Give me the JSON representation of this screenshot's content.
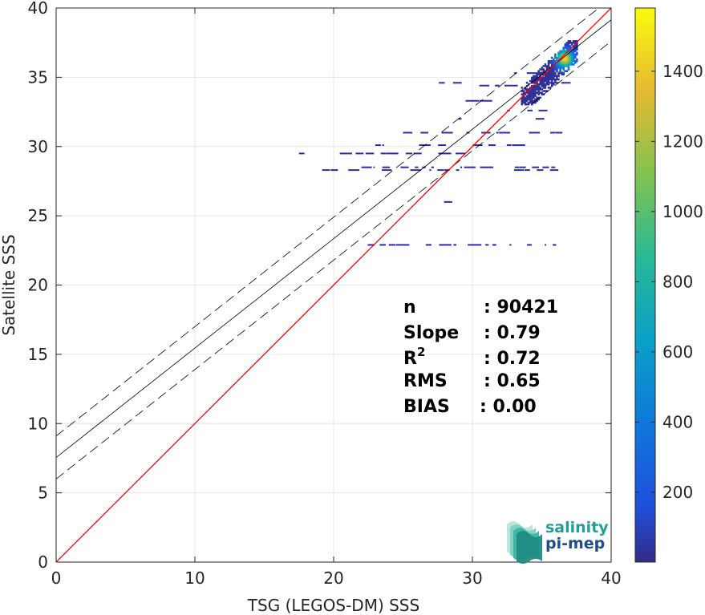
{
  "chart_data": {
    "type": "scatter",
    "subtype": "density-2d-histogram",
    "xlabel": "TSG (LEGOS-DM) SSS",
    "ylabel": "Satellite SSS",
    "xlim": [
      0,
      40
    ],
    "ylim": [
      0,
      40
    ],
    "xticks": [
      0,
      10,
      20,
      30,
      40
    ],
    "yticks": [
      0,
      5,
      10,
      15,
      20,
      25,
      30,
      35,
      40
    ],
    "grid": true,
    "colorbar": {
      "ticks": [
        200,
        400,
        600,
        800,
        1000,
        1200,
        1400
      ],
      "range": [
        1,
        1580
      ],
      "colormap": "parula"
    },
    "stats": [
      {
        "label": "n",
        "value": ": 90421"
      },
      {
        "label": "Slope",
        "value": ": 0.79"
      },
      {
        "label": "R",
        "sup": "2",
        "value": ": 0.72"
      },
      {
        "label": "RMS",
        "value": ": 0.65"
      },
      {
        "label": "BIAS",
        "value": ": 0.00"
      }
    ],
    "lines": {
      "identity": {
        "slope": 1.0,
        "intercept": 0.0,
        "color": "#ff0000"
      },
      "fit": {
        "slope": 0.79,
        "intercept": 7.55,
        "color": "#000000"
      },
      "fit_band_offset": 1.55
    },
    "density_core": {
      "x": [
        33.5,
        37.5
      ],
      "y": [
        33.0,
        37.6
      ],
      "peak": [
        36.6,
        36.3
      ]
    },
    "density_segments": [
      {
        "x0": 33.0,
        "x1": 37.2,
        "y": 35.3
      },
      {
        "x0": 34.0,
        "x1": 36.8,
        "y": 34.6
      },
      {
        "x0": 28.0,
        "x1": 31.5,
        "y": 33.3
      },
      {
        "x0": 32.5,
        "x1": 36.5,
        "y": 32.6
      },
      {
        "x0": 29.0,
        "x1": 35.5,
        "y": 32.0
      },
      {
        "x0": 25.0,
        "x1": 36.0,
        "y": 31.0
      },
      {
        "x0": 23.0,
        "x1": 35.0,
        "y": 30.1
      },
      {
        "x0": 17.5,
        "x1": 33.5,
        "y": 29.5
      },
      {
        "x0": 22.0,
        "x1": 36.0,
        "y": 28.5
      },
      {
        "x0": 18.5,
        "x1": 29.0,
        "y": 28.3
      },
      {
        "x0": 33.0,
        "x1": 36.5,
        "y": 28.3
      },
      {
        "x0": 26.0,
        "x1": 28.5,
        "y": 26.0
      },
      {
        "x0": 20.5,
        "x1": 36.5,
        "y": 22.9
      },
      {
        "x0": 27.0,
        "x1": 29.5,
        "y": 34.6
      },
      {
        "x0": 30.5,
        "x1": 32.5,
        "y": 34.4
      }
    ],
    "logo": {
      "line1": "salinity",
      "line2": "pi-mep",
      "color1": "#1f9e9a",
      "color2": "#1a4f8a"
    }
  }
}
